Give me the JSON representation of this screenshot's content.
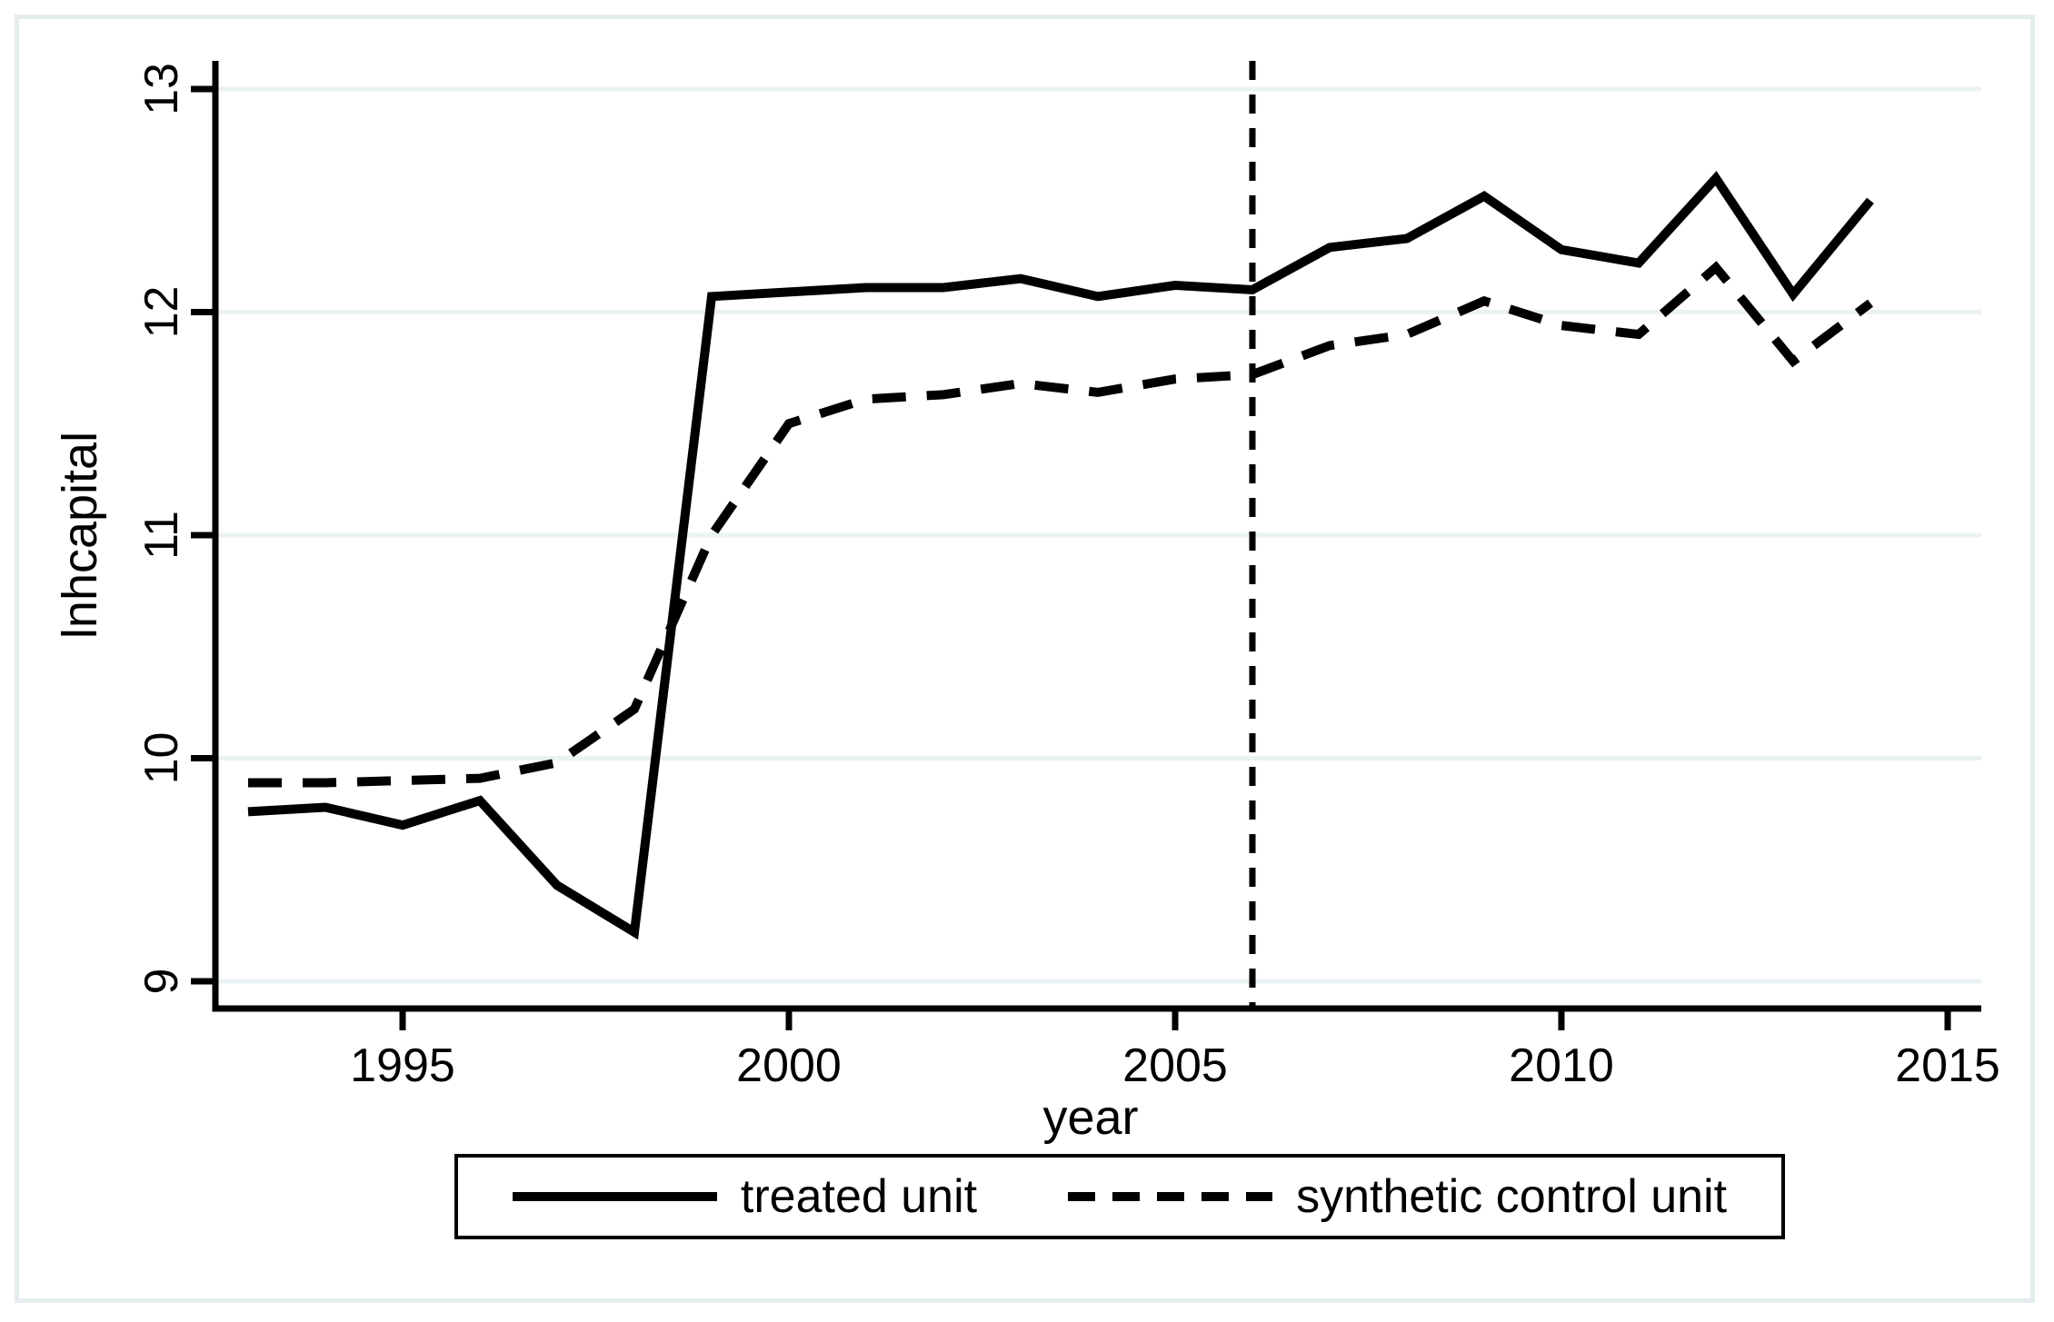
{
  "figure": {
    "background": "#ffffff",
    "frame_color": "#e4edee",
    "grid_color": "#eaf2f3",
    "axis_color": "#000000",
    "line_color": "#000000"
  },
  "chart_data": {
    "type": "line",
    "title": "",
    "xlabel": "year",
    "ylabel": "lnhcapital",
    "x_ticks": [
      1995,
      2000,
      2005,
      2010,
      2015
    ],
    "x_tick_labels": [
      "1995",
      "2000",
      "2005",
      "2010",
      "2015"
    ],
    "y_ticks": [
      9,
      10,
      11,
      12,
      13
    ],
    "y_tick_labels": [
      "9",
      "10",
      "11",
      "12",
      "13"
    ],
    "xlim": [
      1992.6,
      2015.4
    ],
    "ylim": [
      8.88,
      13.13
    ],
    "grid": "horizontal-only",
    "treatment_line_x": 2006,
    "legend_position": "bottom-center",
    "x": [
      1993,
      1994,
      1995,
      1996,
      1997,
      1998,
      1999,
      2000,
      2001,
      2002,
      2003,
      2004,
      2005,
      2006,
      2007,
      2008,
      2009,
      2010,
      2011,
      2012,
      2013,
      2014
    ],
    "series": [
      {
        "name": "treated unit",
        "style": "solid",
        "values": [
          9.76,
          9.78,
          9.7,
          9.81,
          9.43,
          9.22,
          12.07,
          12.09,
          12.11,
          12.11,
          12.15,
          12.07,
          12.12,
          12.1,
          12.29,
          12.33,
          12.52,
          12.28,
          12.22,
          12.6,
          12.08,
          12.5
        ]
      },
      {
        "name": "synthetic control unit",
        "style": "dashed",
        "values": [
          9.89,
          9.89,
          9.9,
          9.91,
          9.98,
          10.22,
          11.0,
          11.5,
          11.61,
          11.63,
          11.68,
          11.64,
          11.7,
          11.72,
          11.85,
          11.9,
          12.05,
          11.94,
          11.9,
          12.2,
          11.78,
          12.04
        ]
      }
    ]
  },
  "legend": {
    "items": [
      {
        "label": "treated unit",
        "style": "solid"
      },
      {
        "label": "synthetic control unit",
        "style": "dashed"
      }
    ]
  }
}
